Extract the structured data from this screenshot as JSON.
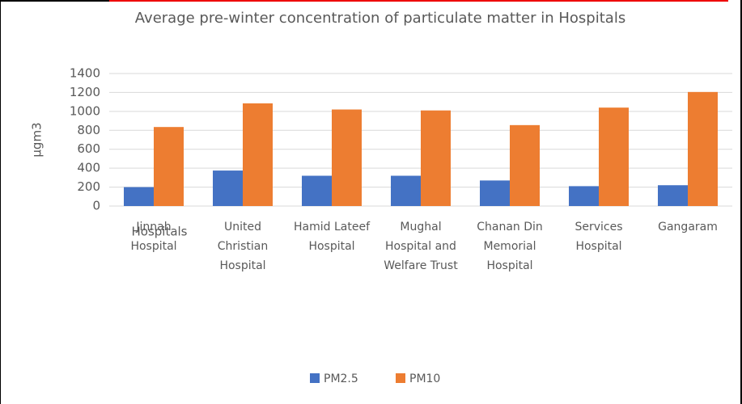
{
  "chart_data": {
    "type": "bar",
    "title": "Average pre-winter concentration of particulate matter in Hospitals",
    "y_label": "µgm3",
    "x_label": "Hospitals",
    "categories": [
      "Jinnah Hospital",
      "United Christian Hospital",
      "Hamid Lateef Hospital",
      "Mughal Hospital and Welfare Trust",
      "Chanan Din Memorial Hospital",
      "Services Hospital",
      "Gangaram"
    ],
    "series": [
      {
        "name": "PM2.5",
        "color": "#4472c4",
        "values": [
          200,
          375,
          320,
          320,
          270,
          210,
          220
        ]
      },
      {
        "name": "PM10",
        "color": "#ed7d31",
        "values": [
          835,
          1085,
          1020,
          1010,
          855,
          1040,
          1205
        ]
      }
    ],
    "ylim": [
      0,
      1400
    ],
    "yticks": [
      0,
      200,
      400,
      600,
      800,
      1000,
      1200,
      1400
    ],
    "grid": true
  }
}
